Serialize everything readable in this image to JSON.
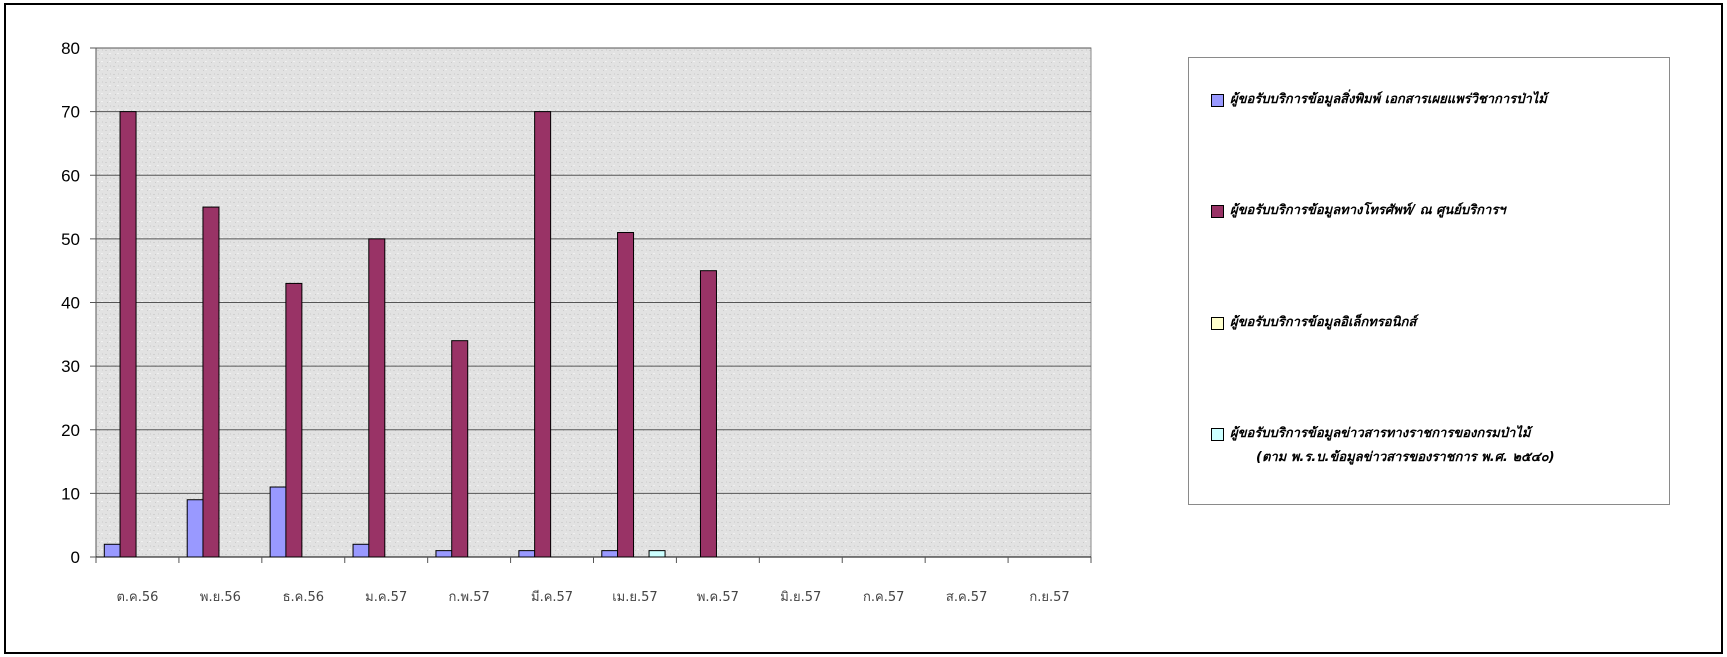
{
  "chart_data": {
    "type": "bar",
    "categories": [
      "ต.ค.56",
      "พ.ย.56",
      "ธ.ค.56",
      "ม.ค.57",
      "ก.พ.57",
      "มี.ค.57",
      "เม.ย.57",
      "พ.ค.57",
      "มิ.ย.57",
      "ก.ค.57",
      "ส.ค.57",
      "ก.ย.57"
    ],
    "series": [
      {
        "name": "ผู้ขอรับบริการข้อมูลสิ่งพิมพ์ เอกสารเผยแพร่วิชาการป่าไม้",
        "color": "#9999ff",
        "values": [
          2,
          9,
          11,
          2,
          1,
          1,
          1,
          null,
          null,
          null,
          null,
          null
        ]
      },
      {
        "name": "ผู้ขอรับบริการข้อมูลทางโทรศัพท์/ ณ ศูนย์บริการฯ",
        "color": "#993366",
        "values": [
          70,
          55,
          43,
          50,
          34,
          70,
          51,
          45,
          null,
          null,
          null,
          null
        ]
      },
      {
        "name": "ผู้ขอรับบริการข้อมูลอิเล็กทรอนิกส์",
        "color": "#ffffcc",
        "values": [
          null,
          null,
          null,
          null,
          null,
          null,
          null,
          null,
          null,
          null,
          null,
          null
        ]
      },
      {
        "name": "ผู้ขอรับบริการข้อมูลข่าวสารทางราชการของกรมป่าไม้",
        "name_line2": "(ตาม พ.ร.บ.ข้อมูลข่าวสารของราชการ พ.ศ. ๒๕๔๐)",
        "color": "#ccffff",
        "values": [
          null,
          null,
          null,
          null,
          null,
          null,
          1,
          null,
          null,
          null,
          null,
          null
        ]
      }
    ],
    "y_ticks": [
      "0",
      "10",
      "20",
      "30",
      "40",
      "50",
      "60",
      "70",
      "80"
    ],
    "ylim": [
      0,
      80
    ],
    "grid": true,
    "legend_position": "right"
  }
}
